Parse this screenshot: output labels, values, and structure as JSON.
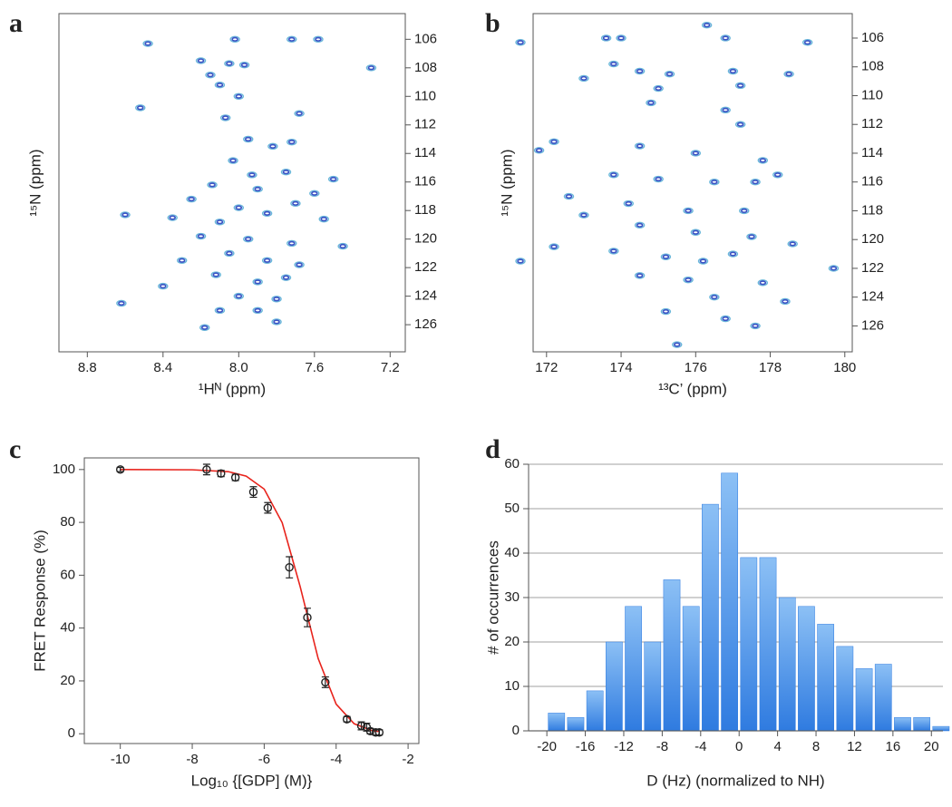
{
  "chart_data": [
    {
      "type": "contour",
      "panel": "a",
      "xlabel": "¹Hᴺ (ppm)",
      "ylabel": "¹⁵N (ppm)",
      "color": "#3b52c4",
      "y_axis_side": "right",
      "xlim": [
        8.95,
        7.12
      ],
      "xticks": [
        8.8,
        8.4,
        {
          "value": 8.0,
          "label": "8.0"
        },
        7.6,
        7.2
      ],
      "ylim": [
        127.9,
        104.2
      ],
      "yticks": [
        106,
        108,
        110,
        112,
        114,
        116,
        118,
        120,
        122,
        124,
        126
      ],
      "x": [
        8.02,
        8.48,
        7.72,
        7.58,
        8.2,
        8.05,
        7.97,
        7.3,
        8.15,
        8.1,
        8.0,
        8.52,
        8.07,
        7.68,
        7.95,
        7.82,
        7.72,
        8.03,
        7.93,
        7.75,
        7.5,
        8.14,
        7.9,
        7.6,
        8.25,
        8.0,
        7.7,
        8.35,
        8.1,
        7.85,
        7.55,
        8.6,
        8.2,
        7.95,
        7.72,
        7.45,
        8.05,
        7.85,
        7.68,
        8.3,
        8.12,
        7.9,
        7.75,
        8.4,
        8.0,
        7.8,
        8.62,
        8.1,
        7.9,
        7.8,
        8.18
      ],
      "y": [
        106.0,
        106.3,
        106.0,
        106.0,
        107.5,
        107.7,
        107.8,
        108.0,
        108.5,
        109.2,
        110.0,
        110.8,
        111.5,
        111.2,
        113.0,
        113.5,
        113.2,
        114.5,
        115.5,
        115.3,
        115.8,
        116.2,
        116.5,
        116.8,
        117.2,
        117.8,
        117.5,
        118.5,
        118.8,
        118.2,
        118.6,
        118.3,
        119.8,
        120.0,
        120.3,
        120.5,
        121.0,
        121.5,
        121.8,
        121.5,
        122.5,
        123.0,
        122.7,
        123.3,
        124.0,
        124.2,
        124.5,
        125.0,
        125.0,
        125.8,
        126.2
      ]
    },
    {
      "type": "contour",
      "panel": "b",
      "xlabel": "¹³C’ (ppm)",
      "ylabel": "¹⁵N (ppm)",
      "color": "#3b52c4",
      "y_axis_side": "right",
      "xlim": [
        171.64,
        180.2
      ],
      "xticks": [
        172,
        174,
        176,
        178,
        180
      ],
      "ylim": [
        127.8,
        104.3
      ],
      "yticks": [
        106,
        108,
        110,
        112,
        114,
        116,
        118,
        120,
        122,
        124,
        126
      ],
      "x": [
        176.3,
        171.3,
        173.6,
        174.0,
        176.8,
        179.0,
        173.8,
        174.5,
        175.3,
        177.0,
        178.5,
        173.0,
        175.0,
        177.2,
        174.8,
        176.8,
        177.2,
        172.2,
        171.8,
        174.5,
        176.0,
        177.8,
        173.8,
        175.0,
        176.5,
        177.6,
        178.2,
        172.6,
        174.2,
        175.8,
        177.3,
        173.0,
        174.5,
        176.0,
        177.5,
        178.6,
        172.2,
        173.8,
        175.2,
        176.2,
        177.0,
        179.7,
        171.3,
        174.5,
        175.8,
        177.8,
        176.5,
        178.4,
        175.2,
        176.8,
        177.6,
        175.5
      ],
      "y": [
        105.1,
        106.3,
        106.0,
        106.0,
        106.0,
        106.3,
        107.8,
        108.3,
        108.5,
        108.3,
        108.5,
        108.8,
        109.5,
        109.3,
        110.5,
        111.0,
        112.0,
        113.2,
        113.8,
        113.5,
        114.0,
        114.5,
        115.5,
        115.8,
        116.0,
        116.0,
        115.5,
        117.0,
        117.5,
        118.0,
        118.0,
        118.3,
        119.0,
        119.5,
        119.8,
        120.3,
        120.5,
        120.8,
        121.2,
        121.5,
        121.0,
        122.0,
        121.5,
        122.5,
        122.8,
        123.0,
        124.0,
        124.3,
        125.0,
        125.5,
        126.0,
        127.3
      ]
    },
    {
      "type": "scatter",
      "panel": "c",
      "xlabel": "Log₁₀ {[GDP] (M)}",
      "ylabel": "FRET Response (%)",
      "color": "#222222",
      "fit_color": "#e8231c",
      "xlim": [
        -11,
        -1.7
      ],
      "xticks": [
        -10,
        -8,
        -6,
        -4,
        -2
      ],
      "ylim": [
        -3.7,
        104.4
      ],
      "yticks": [
        0,
        20,
        40,
        60,
        80,
        100
      ],
      "x": [
        -10,
        -7.6,
        -7.2,
        -6.8,
        -6.3,
        -5.9,
        -5.3,
        -4.8,
        -4.3,
        -3.7,
        -3.3,
        -3.15,
        -3.05,
        -2.9,
        -2.8
      ],
      "values": [
        100,
        100,
        98.5,
        97,
        91.5,
        85.5,
        63,
        44,
        19.5,
        5.5,
        3,
        2.5,
        1,
        0.5,
        0.5
      ],
      "errors": [
        0.8,
        2,
        1.2,
        1.2,
        2,
        2,
        4,
        3.5,
        2,
        1,
        1.5,
        1.5,
        1,
        1,
        1
      ],
      "fit": {
        "x": [
          -10,
          -8,
          -7,
          -6.5,
          -6,
          -5.5,
          -5,
          -4.5,
          -4,
          -3.5,
          -3,
          -2.8
        ],
        "y": [
          100,
          99.9,
          99.2,
          97.5,
          92.6,
          79.9,
          55.7,
          28.5,
          11.2,
          3.8,
          1.2,
          0.8
        ]
      }
    },
    {
      "type": "histogram",
      "panel": "d",
      "xlabel": "D (Hz) (normalized to NH)",
      "ylabel": "# of occurrences",
      "color": "#2f7be0",
      "grid": true,
      "xlim": [
        -21.9,
        21.2
      ],
      "xticks": [
        -20,
        -16,
        -12,
        -8,
        -4,
        0,
        4,
        8,
        12,
        16,
        20
      ],
      "ylim": [
        0,
        60
      ],
      "yticks": [
        0,
        10,
        20,
        30,
        40,
        50,
        60
      ],
      "bins": [
        -20,
        -18,
        -16,
        -14,
        -12,
        -10,
        -8,
        -6,
        -4,
        -2,
        0,
        2,
        4,
        6,
        8,
        10,
        12,
        14,
        16,
        18,
        20,
        22
      ],
      "values": [
        4,
        3,
        9,
        20,
        28,
        20,
        34,
        28,
        51,
        58,
        39,
        39,
        30,
        28,
        24,
        19,
        14,
        15,
        3,
        3,
        1
      ]
    }
  ]
}
